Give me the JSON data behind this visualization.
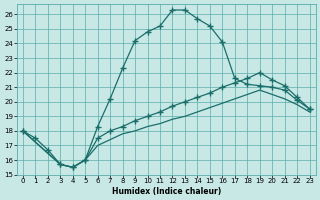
{
  "xlabel": "Humidex (Indice chaleur)",
  "background_color": "#c8e8e6",
  "grid_color": "#5aacac",
  "line_color": "#1a6e6a",
  "xlim": [
    -0.5,
    23.5
  ],
  "ylim": [
    15,
    26.7
  ],
  "xticks": [
    0,
    1,
    2,
    3,
    4,
    5,
    6,
    7,
    8,
    9,
    10,
    11,
    12,
    13,
    14,
    15,
    16,
    17,
    18,
    19,
    20,
    21,
    22,
    23
  ],
  "yticks": [
    15,
    16,
    17,
    18,
    19,
    20,
    21,
    22,
    23,
    24,
    25,
    26
  ],
  "peaked_x": [
    0,
    1,
    2,
    3,
    4,
    5,
    6,
    7,
    8,
    9,
    10,
    11,
    12,
    13,
    14,
    15,
    16,
    17,
    18,
    19,
    20,
    21,
    22,
    23
  ],
  "peaked_y": [
    18.0,
    17.5,
    16.7,
    15.7,
    15.5,
    16.0,
    18.3,
    20.2,
    22.3,
    24.2,
    24.8,
    25.2,
    26.3,
    26.3,
    25.7,
    25.2,
    24.1,
    21.6,
    21.2,
    21.1,
    21.0,
    20.8,
    20.1,
    19.5
  ],
  "upper_diag_x": [
    0,
    3,
    4,
    5,
    6,
    7,
    8,
    9,
    10,
    11,
    12,
    13,
    14,
    15,
    16,
    17,
    18,
    19,
    20,
    21,
    22,
    23
  ],
  "upper_diag_y": [
    18.0,
    15.7,
    15.5,
    16.0,
    17.5,
    18.0,
    18.3,
    18.7,
    19.0,
    19.3,
    19.7,
    20.0,
    20.3,
    20.6,
    21.0,
    21.3,
    21.6,
    22.0,
    21.5,
    21.1,
    20.3,
    19.5
  ],
  "lower_diag_x": [
    0,
    3,
    4,
    5,
    6,
    7,
    8,
    9,
    10,
    11,
    12,
    13,
    14,
    15,
    16,
    17,
    18,
    19,
    20,
    21,
    22,
    23
  ],
  "lower_diag_y": [
    18.0,
    15.7,
    15.5,
    16.0,
    17.0,
    17.4,
    17.8,
    18.0,
    18.3,
    18.5,
    18.8,
    19.0,
    19.3,
    19.6,
    19.9,
    20.2,
    20.5,
    20.8,
    20.5,
    20.2,
    19.8,
    19.3
  ]
}
